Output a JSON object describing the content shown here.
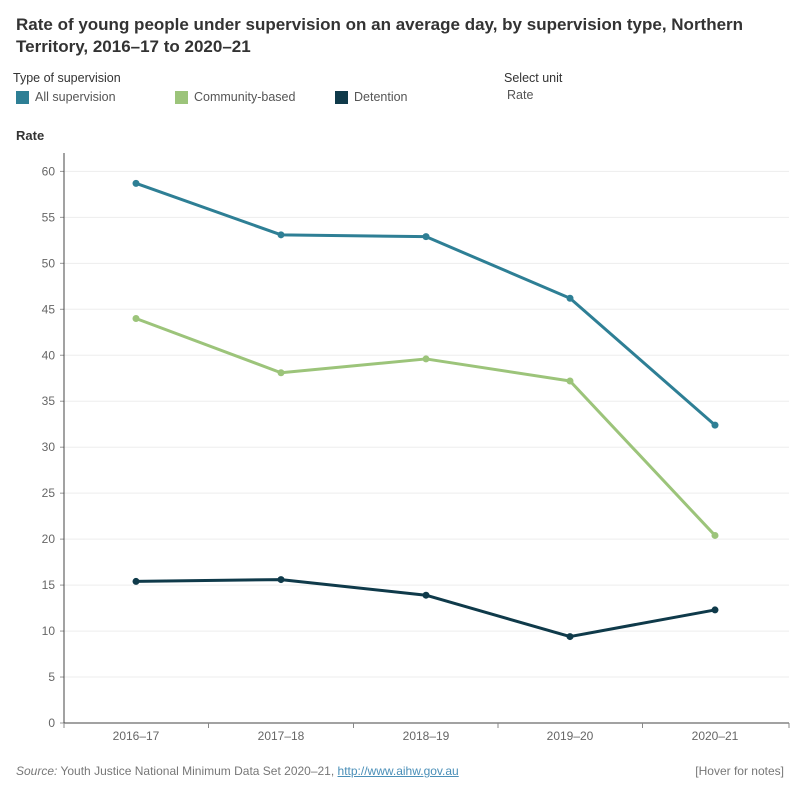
{
  "title": "Rate of young people under supervision on an average day, by supervision type, Northern Territory, 2016–17 to 2020–21",
  "legend": {
    "title": "Type of supervision",
    "items": [
      {
        "label": "All supervision",
        "color": "#2e7f95"
      },
      {
        "label": "Community-based",
        "color": "#9cc47a"
      },
      {
        "label": "Detention",
        "color": "#0f3a4a"
      }
    ]
  },
  "unit_selector": {
    "title": "Select unit",
    "value": "Rate"
  },
  "footer": {
    "source_label": "Source:",
    "source_text": " Youth Justice National Minimum Data Set 2020–21, ",
    "link_text": "http://www.aihw.gov.au",
    "notes": "[Hover for notes]"
  },
  "chart_data": {
    "type": "line",
    "title": "Rate of young people under supervision on an average day, by supervision type, Northern Territory, 2016–17 to 2020–21",
    "xlabel": "",
    "ylabel": "Rate",
    "categories": [
      "2016–17",
      "2017–18",
      "2018–19",
      "2019–20",
      "2020–21"
    ],
    "ylim": [
      0,
      62
    ],
    "yticks": [
      0,
      5,
      10,
      15,
      20,
      25,
      30,
      35,
      40,
      45,
      50,
      55,
      60
    ],
    "grid": true,
    "legend_position": "top-left",
    "series": [
      {
        "name": "All supervision",
        "color": "#2e7f95",
        "values": [
          58.7,
          53.1,
          52.9,
          46.2,
          32.4
        ]
      },
      {
        "name": "Community-based",
        "color": "#9cc47a",
        "values": [
          44.0,
          38.1,
          39.6,
          37.2,
          20.4
        ]
      },
      {
        "name": "Detention",
        "color": "#0f3a4a",
        "values": [
          15.4,
          15.6,
          13.9,
          9.4,
          12.3
        ]
      }
    ]
  }
}
